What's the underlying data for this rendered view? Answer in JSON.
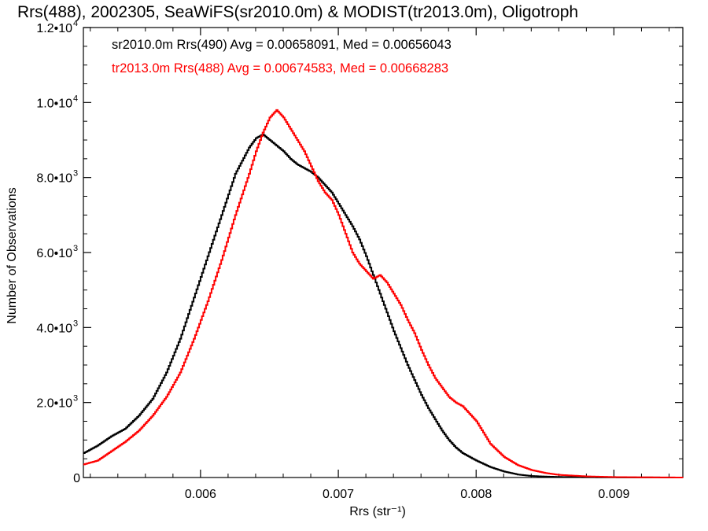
{
  "chart_data": {
    "type": "line",
    "title": "Rrs(488), 2002305, SeaWiFS(sr2010.0m) & MODIST(tr2013.0m), Oligotroph",
    "xlabel": "Rrs (str⁻¹)",
    "ylabel": "Number of Observations",
    "xlim": [
      0.00515,
      0.0095
    ],
    "ylim": [
      0,
      12000
    ],
    "x_ticks": [
      {
        "value": 0.006,
        "label": "0.006"
      },
      {
        "value": 0.007,
        "label": "0.007"
      },
      {
        "value": 0.008,
        "label": "0.008"
      },
      {
        "value": 0.009,
        "label": "0.009"
      }
    ],
    "y_ticks": [
      {
        "value": 0,
        "label": "0",
        "exp": ""
      },
      {
        "value": 2000,
        "label": "2.0•10",
        "exp": "3"
      },
      {
        "value": 4000,
        "label": "4.0•10",
        "exp": "3"
      },
      {
        "value": 6000,
        "label": "6.0•10",
        "exp": "3"
      },
      {
        "value": 8000,
        "label": "8.0•10",
        "exp": "3"
      },
      {
        "value": 10000,
        "label": "1.0•10",
        "exp": "4"
      },
      {
        "value": 12000,
        "label": "1.2•10",
        "exp": "4"
      }
    ],
    "legend": {
      "placement": "top-left",
      "entries": [
        "sr2010.0m Rrs(490) Avg = 0.00658091, Med = 0.00656043",
        "tr2013.0m Rrs(488) Avg = 0.00674583, Med = 0.00668283"
      ]
    },
    "series": [
      {
        "color": "#000000",
        "x": [
          0.00515,
          0.00525,
          0.00535,
          0.00545,
          0.00555,
          0.00565,
          0.00575,
          0.00585,
          0.00595,
          0.00605,
          0.00615,
          0.00625,
          0.00635,
          0.0064,
          0.00645,
          0.0065,
          0.00655,
          0.0066,
          0.00665,
          0.0067,
          0.00675,
          0.0068,
          0.00685,
          0.0069,
          0.00695,
          0.007,
          0.00705,
          0.0071,
          0.00715,
          0.0072,
          0.00725,
          0.0073,
          0.00735,
          0.0074,
          0.00745,
          0.0075,
          0.00755,
          0.0076,
          0.00765,
          0.0077,
          0.00775,
          0.0078,
          0.00785,
          0.0079,
          0.008,
          0.0081,
          0.0082,
          0.0083,
          0.0084,
          0.0085,
          0.0086,
          0.0088,
          0.009,
          0.0092,
          0.0094,
          0.0095
        ],
        "y": [
          650,
          850,
          1100,
          1300,
          1650,
          2100,
          2800,
          3700,
          4800,
          5900,
          7000,
          8100,
          8800,
          9050,
          9150,
          9000,
          8850,
          8700,
          8500,
          8350,
          8250,
          8150,
          8000,
          7800,
          7600,
          7300,
          7000,
          6700,
          6350,
          5900,
          5400,
          4900,
          4400,
          3900,
          3450,
          3000,
          2600,
          2200,
          1850,
          1550,
          1250,
          1000,
          800,
          650,
          450,
          280,
          160,
          80,
          40,
          25,
          15,
          8,
          4,
          2,
          1,
          0
        ]
      },
      {
        "color": "#ff0000",
        "x": [
          0.00515,
          0.00525,
          0.00535,
          0.00545,
          0.00555,
          0.00565,
          0.00575,
          0.00585,
          0.00595,
          0.00605,
          0.00615,
          0.00625,
          0.00635,
          0.0064,
          0.00645,
          0.0065,
          0.00655,
          0.0066,
          0.00665,
          0.0067,
          0.00675,
          0.0068,
          0.00685,
          0.0069,
          0.00695,
          0.007,
          0.00705,
          0.0071,
          0.00715,
          0.0072,
          0.00725,
          0.0073,
          0.00735,
          0.0074,
          0.00745,
          0.0075,
          0.00755,
          0.0076,
          0.00765,
          0.0077,
          0.00775,
          0.0078,
          0.00785,
          0.0079,
          0.008,
          0.0081,
          0.0082,
          0.0083,
          0.0084,
          0.0085,
          0.0086,
          0.0088,
          0.009,
          0.0092,
          0.0094,
          0.0095
        ],
        "y": [
          350,
          450,
          700,
          950,
          1250,
          1650,
          2150,
          2800,
          3700,
          4700,
          5800,
          7000,
          8100,
          8700,
          9200,
          9600,
          9800,
          9600,
          9300,
          9000,
          8700,
          8300,
          7900,
          7600,
          7400,
          7000,
          6500,
          6000,
          5700,
          5500,
          5300,
          5400,
          5200,
          4900,
          4600,
          4200,
          3850,
          3400,
          3000,
          2650,
          2400,
          2150,
          2000,
          1900,
          1500,
          900,
          550,
          330,
          200,
          120,
          70,
          30,
          12,
          5,
          2,
          0
        ]
      }
    ]
  }
}
